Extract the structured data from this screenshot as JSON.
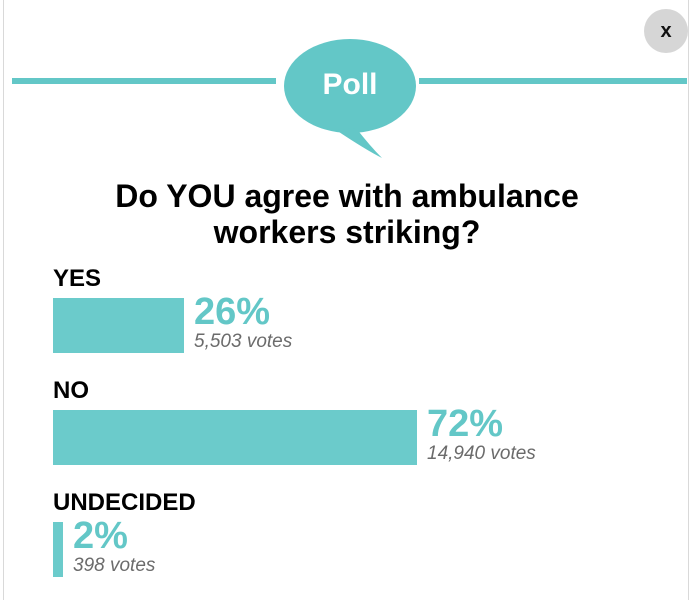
{
  "close": {
    "label": "x"
  },
  "header": {
    "badge": "Poll"
  },
  "poll": {
    "question": "Do YOU agree with ambulance workers striking?",
    "options": [
      {
        "label": "YES",
        "percent": 26,
        "percent_text": "26%",
        "votes_text": "5,503 votes"
      },
      {
        "label": "NO",
        "percent": 72,
        "percent_text": "72%",
        "votes_text": "14,940 votes"
      },
      {
        "label": "UNDECIDED",
        "percent": 2,
        "percent_text": "2%",
        "votes_text": "398 votes"
      }
    ]
  },
  "colors": {
    "accent": "#63c7c7",
    "bar": "#6bcbcb",
    "close_bg": "#d6d6d6"
  },
  "icons": {
    "close": "close-icon",
    "bubble": "speech-bubble-icon"
  }
}
